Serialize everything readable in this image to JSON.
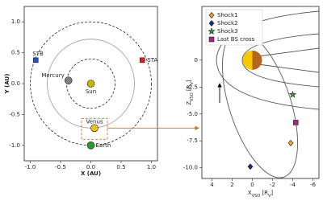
{
  "chart_data": [
    {
      "type": "scatter",
      "xlabel": "X (AU)",
      "ylabel": "Y (AU)",
      "xlim": [
        -1.1,
        1.1
      ],
      "ylim": [
        -1.25,
        1.25
      ],
      "xticks": [
        {
          "value": -1.0,
          "label": "-1.0"
        },
        -0.5,
        {
          "value": 0.0,
          "label": "0.0"
        },
        0.5,
        {
          "value": 1.0,
          "label": "1.0"
        }
      ],
      "yticks": [
        {
          "value": -1.0,
          "label": "-1.0"
        },
        -0.5,
        {
          "value": 0.0,
          "label": "0.0"
        },
        0.5,
        {
          "value": 1.0,
          "label": "1.0"
        }
      ],
      "series": [
        {
          "name": "Sun",
          "color": "#c8b400",
          "marker": "circle",
          "x": [
            0.0
          ],
          "values": [
            0.0
          ]
        },
        {
          "name": "Mercury",
          "color": "#808080",
          "marker": "circle",
          "x": [
            -0.37
          ],
          "values": [
            0.05
          ]
        },
        {
          "name": "Venus",
          "color": "#f0c020",
          "marker": "circle",
          "x": [
            0.06
          ],
          "values": [
            -0.72
          ]
        },
        {
          "name": "Earth",
          "color": "#2a9a2a",
          "marker": "circle",
          "x": [
            0.0
          ],
          "values": [
            -1.0
          ]
        },
        {
          "name": "STA",
          "color": "#e02020",
          "marker": "square",
          "x": [
            0.85
          ],
          "values": [
            0.38
          ]
        },
        {
          "name": "STB",
          "color": "#2050c0",
          "marker": "square",
          "x": [
            -0.91
          ],
          "values": [
            0.38
          ]
        }
      ]
    },
    {
      "type": "scatter",
      "xlabel_parts": [
        "X",
        "VSO",
        " [R",
        "V",
        "]"
      ],
      "ylabel_parts": [
        "Z",
        "VSO",
        " [R",
        "V",
        "]"
      ],
      "xlim": [
        5,
        -6.6
      ],
      "ylim": [
        -11,
        5
      ],
      "xticks": [
        4,
        2,
        0,
        -2,
        -4,
        -6
      ],
      "yticks": [
        0,
        -2.5,
        {
          "value": -5,
          "label": "-5.0"
        },
        -7.5,
        {
          "value": -10,
          "label": "-10.0"
        }
      ],
      "series": [
        {
          "name": "Shock1",
          "color": "#f0a030",
          "marker": "diamond",
          "x": [
            -3.8
          ],
          "values": [
            -7.7
          ]
        },
        {
          "name": "Shock2",
          "color": "#1a2a80",
          "marker": "diamond",
          "x": [
            0.2
          ],
          "values": [
            -9.9
          ]
        },
        {
          "name": "Shock3",
          "color": "#30a030",
          "marker": "star",
          "x": [
            -4.0
          ],
          "values": [
            -3.2
          ]
        },
        {
          "name": "Last BS cross",
          "color": "#a02880",
          "marker": "square",
          "x": [
            -4.3
          ],
          "values": [
            -5.8
          ]
        }
      ]
    }
  ]
}
